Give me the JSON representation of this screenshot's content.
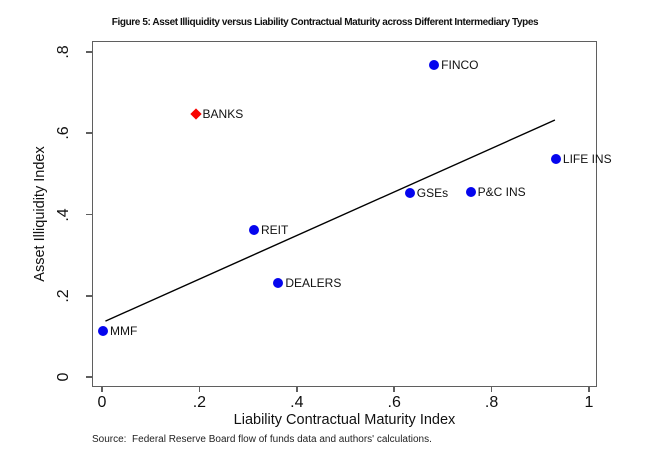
{
  "figure": {
    "title": "Figure 5: Asset Illiquidity versus Liability Contractual Maturity across Different Intermediary Types",
    "source": "Source:  Federal Reserve Board flow of funds data and authors' calculations."
  },
  "chart_data": {
    "type": "scatter",
    "title": "Figure 5: Asset Illiquidity versus Liability Contractual Maturity across Different Intermediary Types",
    "xlabel": "Liability Contractual Maturity Index",
    "ylabel": "Asset Illiquidity Index",
    "xlim": [
      0,
      1
    ],
    "ylim": [
      0,
      0.8
    ],
    "grid": false,
    "legend": false,
    "x_ticks": [
      {
        "v": 0.0,
        "label": "0"
      },
      {
        "v": 0.2,
        "label": ".2"
      },
      {
        "v": 0.4,
        "label": ".4"
      },
      {
        "v": 0.6,
        "label": ".6"
      },
      {
        "v": 0.8,
        "label": ".8"
      },
      {
        "v": 1.0,
        "label": "1"
      }
    ],
    "y_ticks": [
      {
        "v": 0.0,
        "label": "0"
      },
      {
        "v": 0.2,
        "label": ".2"
      },
      {
        "v": 0.4,
        "label": ".4"
      },
      {
        "v": 0.6,
        "label": ".6"
      },
      {
        "v": 0.8,
        "label": ".8"
      }
    ],
    "points": [
      {
        "label": "MMF",
        "x": 0.0,
        "y": 0.115,
        "marker": "circle",
        "color": "#0505ee"
      },
      {
        "label": "REIT",
        "x": 0.31,
        "y": 0.365,
        "marker": "circle",
        "color": "#0505ee"
      },
      {
        "label": "DEALERS",
        "x": 0.36,
        "y": 0.235,
        "marker": "circle",
        "color": "#0505ee"
      },
      {
        "label": "BANKS",
        "x": 0.19,
        "y": 0.65,
        "marker": "diamond",
        "color": "#f80400"
      },
      {
        "label": "GSEs",
        "x": 0.63,
        "y": 0.455,
        "marker": "circle",
        "color": "#0505ee"
      },
      {
        "label": "P&C INS",
        "x": 0.755,
        "y": 0.458,
        "marker": "circle",
        "color": "#0505ee"
      },
      {
        "label": "FINCO",
        "x": 0.68,
        "y": 0.77,
        "marker": "circle",
        "color": "#0505ee"
      },
      {
        "label": "LIFE INS",
        "x": 0.93,
        "y": 0.54,
        "marker": "circle",
        "color": "#0505ee"
      }
    ],
    "fit_line": {
      "x1": 0.005,
      "y1": 0.14,
      "x2": 0.928,
      "y2": 0.635,
      "color": "#000000"
    },
    "colors": {
      "point_blue": "#0505ee",
      "banks_red": "#f80400",
      "axis_gray": "#5f5f5f",
      "text": "#111111"
    }
  }
}
